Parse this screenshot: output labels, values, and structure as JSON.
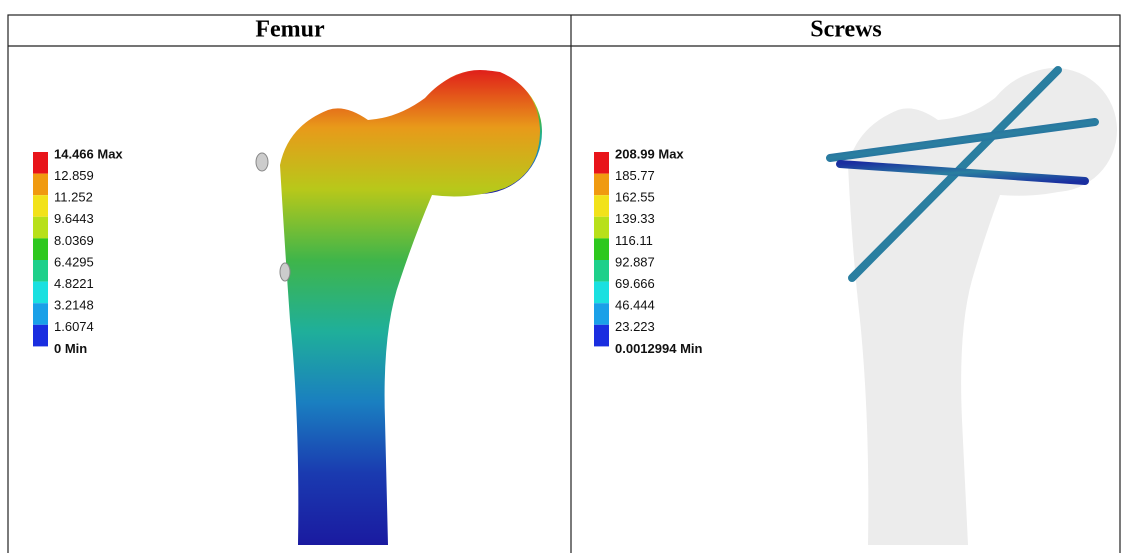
{
  "panels": [
    {
      "title": "Femur",
      "legend": [
        "14.466 Max",
        "12.859",
        "11.252",
        "9.6443",
        "8.0369",
        "6.4295",
        "4.8221",
        "3.2148",
        "1.6074",
        "0 Min"
      ]
    },
    {
      "title": "Screws",
      "legend": [
        "208.99 Max",
        "185.77",
        "162.55",
        "139.33",
        "116.11",
        "92.887",
        "69.666",
        "46.444",
        "23.223",
        "0.0012994 Min"
      ]
    }
  ]
}
